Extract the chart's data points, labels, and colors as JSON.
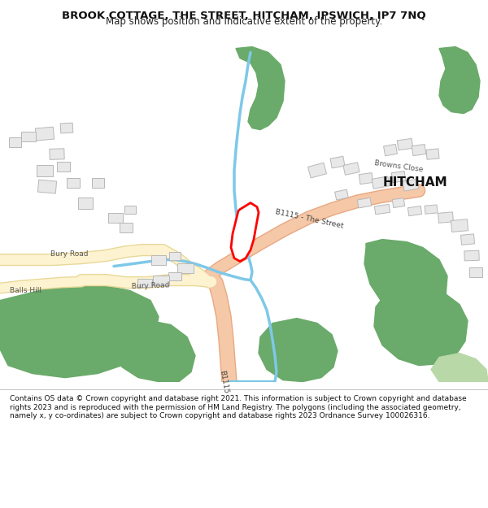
{
  "title": "BROOK COTTAGE, THE STREET, HITCHAM, IPSWICH, IP7 7NQ",
  "subtitle": "Map shows position and indicative extent of the property.",
  "footer": "Contains OS data © Crown copyright and database right 2021. This information is subject to Crown copyright and database rights 2023 and is reproduced with the permission of HM Land Registry. The polygons (including the associated geometry, namely x, y co-ordinates) are subject to Crown copyright and database rights 2023 Ordnance Survey 100026316.",
  "bg_color": "#ffffff",
  "map_bg": "#f8f8f8",
  "road_color": "#f5c8a8",
  "road_outline": "#e8a882",
  "minor_road_color": "#fdf3d0",
  "minor_road_outline": "#e8d898",
  "green_color": "#6aaa6a",
  "light_green_color": "#b8d8a8",
  "water_color": "#7ec8e8",
  "building_color": "#e8e8e8",
  "building_outline": "#b8b8b8",
  "property_color": "#ffffff",
  "property_outline": "#ff0000",
  "label_color": "#333333",
  "hitcham_label_size": 12,
  "road_label_size": 7,
  "street_label_size": 7
}
